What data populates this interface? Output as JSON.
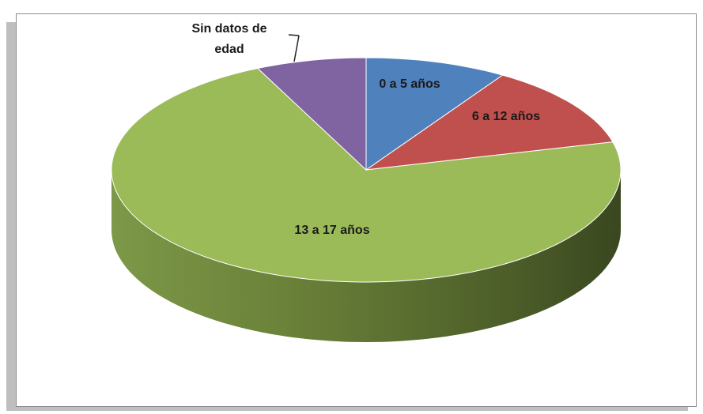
{
  "chart_data": {
    "type": "pie3d",
    "categories": [
      "0 a 5 años",
      "6 a 12 años",
      "13 a 17 años",
      "Sin datos de edad"
    ],
    "values": [
      9,
      12,
      72,
      7
    ],
    "colors": [
      "#4f81bd",
      "#c0504d",
      "#9bbb59",
      "#8064a2"
    ]
  }
}
